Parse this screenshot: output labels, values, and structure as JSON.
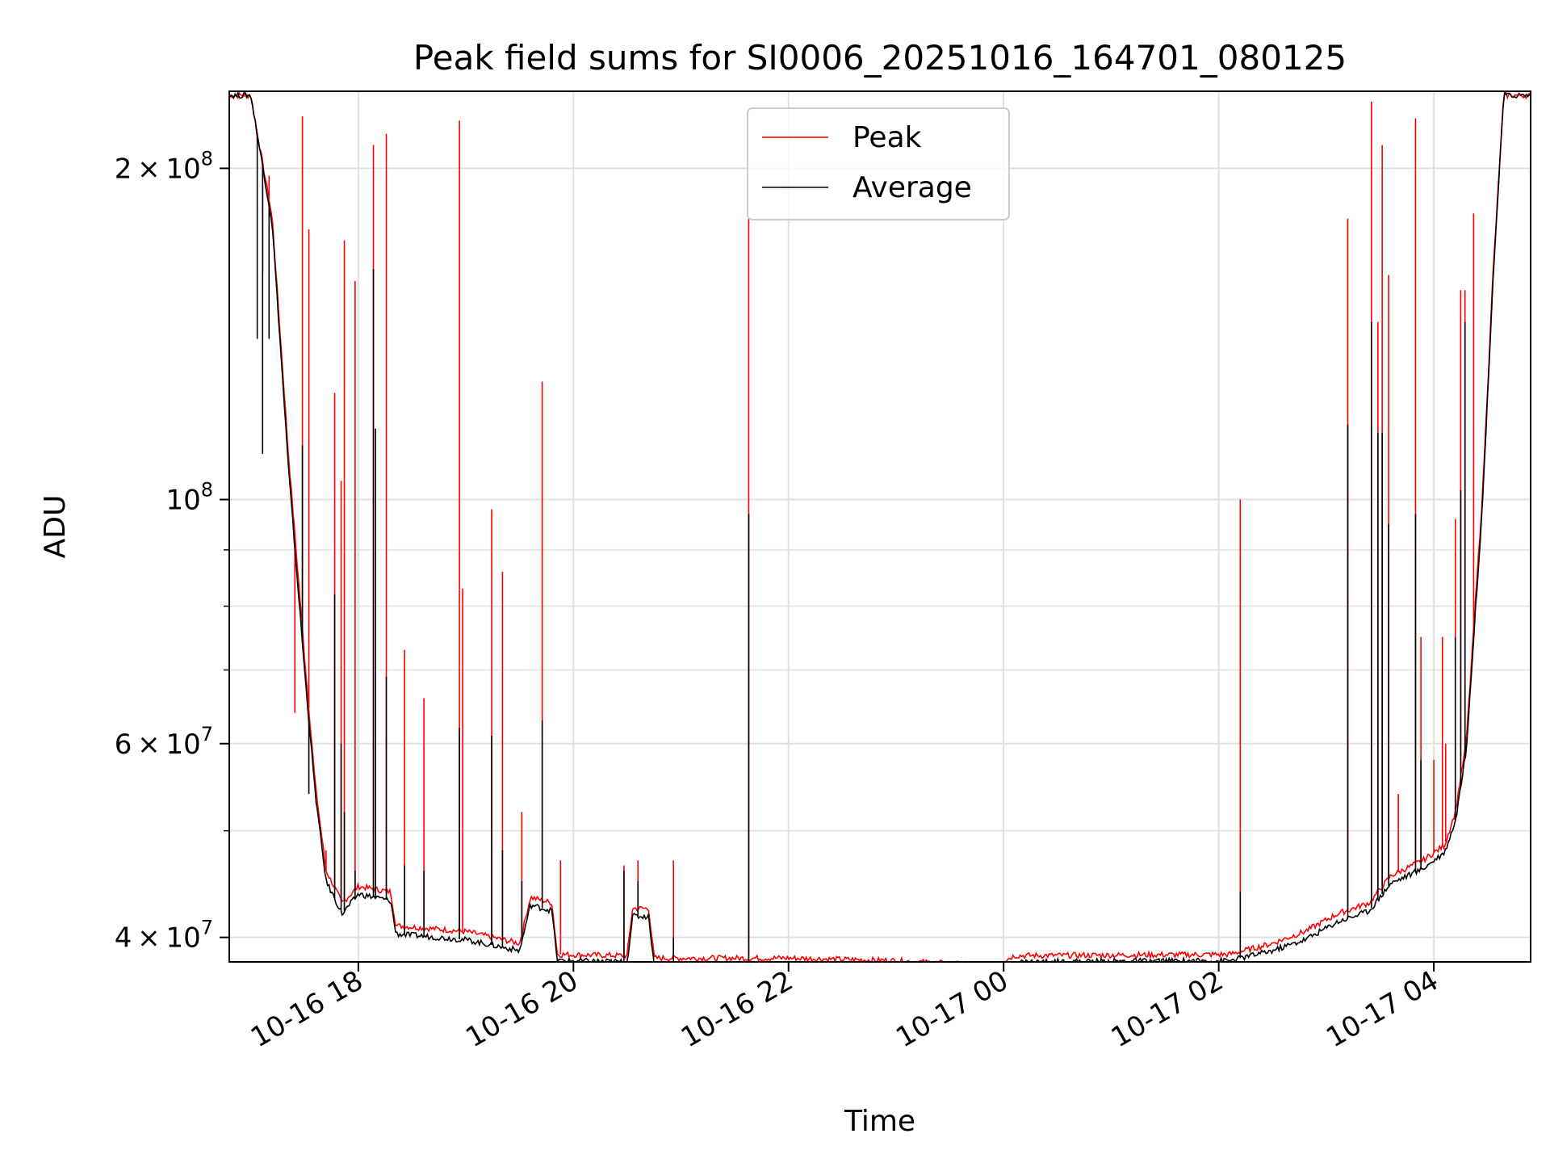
{
  "chart_data": {
    "type": "line",
    "title": "Peak field sums for SI0006_20251016_164701_080125",
    "xlabel": "Time",
    "ylabel": "ADU",
    "yscale": "log",
    "ylim": [
      38000000,
      235000000
    ],
    "xlim_hours": [
      16.8,
      28.9
    ],
    "grid": true,
    "legend_position": "top-center",
    "x_ticks": [
      {
        "hour": 18,
        "label": "10-16 18"
      },
      {
        "hour": 20,
        "label": "10-16 20"
      },
      {
        "hour": 22,
        "label": "10-16 22"
      },
      {
        "hour": 24,
        "label": "10-17 00"
      },
      {
        "hour": 26,
        "label": "10-17 02"
      },
      {
        "hour": 28,
        "label": "10-17 04"
      }
    ],
    "y_ticks_major": [
      {
        "value": 40000000,
        "label_mant": "4",
        "label_exp": "7"
      },
      {
        "value": 60000000,
        "label_mant": "6",
        "label_exp": "7"
      },
      {
        "value": 100000000,
        "label_mant": "",
        "label_exp": "8"
      },
      {
        "value": 200000000,
        "label_mant": "2",
        "label_exp": "8"
      }
    ],
    "y_ticks_minor": [
      50000000,
      70000000,
      80000000,
      90000000
    ],
    "series": [
      {
        "name": "Peak",
        "color": "#ff0000",
        "baseline": [
          [
            16.8,
            233000000
          ],
          [
            17.0,
            233000000
          ],
          [
            17.2,
            180000000
          ],
          [
            17.35,
            110000000
          ],
          [
            17.5,
            72000000
          ],
          [
            17.6,
            55000000
          ],
          [
            17.7,
            46000000
          ],
          [
            17.85,
            43000000
          ],
          [
            18.0,
            44500000
          ],
          [
            18.3,
            44000000
          ],
          [
            18.35,
            41000000
          ],
          [
            19.0,
            40500000
          ],
          [
            19.5,
            39500000
          ],
          [
            19.6,
            43500000
          ],
          [
            19.8,
            43000000
          ],
          [
            19.85,
            38600000
          ],
          [
            20.5,
            38500000
          ],
          [
            20.55,
            42500000
          ],
          [
            20.7,
            42500000
          ],
          [
            20.75,
            38300000
          ],
          [
            22.0,
            38300000
          ],
          [
            23.0,
            38100000
          ],
          [
            23.9,
            37700000
          ],
          [
            24.1,
            38500000
          ],
          [
            26.1,
            38600000
          ],
          [
            26.5,
            39500000
          ],
          [
            26.8,
            40500000
          ],
          [
            27.1,
            42000000
          ],
          [
            27.4,
            43000000
          ],
          [
            27.6,
            45500000
          ],
          [
            27.9,
            47000000
          ],
          [
            28.1,
            48500000
          ],
          [
            28.2,
            52000000
          ],
          [
            28.3,
            60000000
          ],
          [
            28.45,
            100000000
          ],
          [
            28.55,
            160000000
          ],
          [
            28.65,
            233000000
          ],
          [
            28.9,
            233000000
          ]
        ],
        "spikes": [
          [
            17.06,
            212000000
          ],
          [
            17.11,
            160000000
          ],
          [
            17.17,
            197000000
          ],
          [
            17.41,
            64000000
          ],
          [
            17.48,
            223000000
          ],
          [
            17.54,
            176000000
          ],
          [
            17.7,
            48000000
          ],
          [
            17.78,
            125000000
          ],
          [
            17.84,
            104000000
          ],
          [
            17.87,
            172000000
          ],
          [
            17.97,
            158000000
          ],
          [
            18.14,
            210000000
          ],
          [
            18.26,
            215000000
          ],
          [
            18.43,
            73000000
          ],
          [
            18.61,
            66000000
          ],
          [
            18.94,
            221000000
          ],
          [
            18.97,
            83000000
          ],
          [
            19.24,
            98000000
          ],
          [
            19.34,
            86000000
          ],
          [
            19.52,
            52000000
          ],
          [
            19.71,
            128000000
          ],
          [
            19.88,
            47000000
          ],
          [
            20.47,
            46500000
          ],
          [
            20.6,
            47000000
          ],
          [
            20.93,
            47000000
          ],
          [
            21.63,
            180000000
          ],
          [
            26.2,
            100000000
          ],
          [
            27.2,
            180000000
          ],
          [
            27.42,
            230000000
          ],
          [
            27.48,
            145000000
          ],
          [
            27.52,
            210000000
          ],
          [
            27.58,
            160000000
          ],
          [
            27.67,
            54000000
          ],
          [
            27.83,
            222000000
          ],
          [
            27.88,
            75000000
          ],
          [
            28.0,
            58000000
          ],
          [
            28.08,
            75000000
          ],
          [
            28.11,
            60000000
          ],
          [
            28.2,
            96000000
          ],
          [
            28.25,
            155000000
          ],
          [
            28.29,
            155000000
          ],
          [
            28.37,
            182000000
          ]
        ]
      },
      {
        "name": "Average",
        "color": "#000000",
        "baseline": [
          [
            16.8,
            233000000
          ],
          [
            17.0,
            233000000
          ],
          [
            17.2,
            178000000
          ],
          [
            17.35,
            107000000
          ],
          [
            17.5,
            70000000
          ],
          [
            17.6,
            54000000
          ],
          [
            17.7,
            45000000
          ],
          [
            17.85,
            42000000
          ],
          [
            18.0,
            43800000
          ],
          [
            18.3,
            43200000
          ],
          [
            18.35,
            40300000
          ],
          [
            19.0,
            39800000
          ],
          [
            19.5,
            38900000
          ],
          [
            19.6,
            42800000
          ],
          [
            19.8,
            42300000
          ],
          [
            19.85,
            38100000
          ],
          [
            20.5,
            38000000
          ],
          [
            20.55,
            41800000
          ],
          [
            20.7,
            41800000
          ],
          [
            20.75,
            37800000
          ],
          [
            22.0,
            37800000
          ],
          [
            23.0,
            37600000
          ],
          [
            23.9,
            37200000
          ],
          [
            24.1,
            38000000
          ],
          [
            26.1,
            38100000
          ],
          [
            26.5,
            38900000
          ],
          [
            26.8,
            39800000
          ],
          [
            27.1,
            41300000
          ],
          [
            27.4,
            42300000
          ],
          [
            27.6,
            44800000
          ],
          [
            27.9,
            46200000
          ],
          [
            28.1,
            47800000
          ],
          [
            28.2,
            51000000
          ],
          [
            28.3,
            59000000
          ],
          [
            28.45,
            98000000
          ],
          [
            28.55,
            158000000
          ],
          [
            28.65,
            233000000
          ],
          [
            28.9,
            233000000
          ]
        ],
        "spikes": [
          [
            17.06,
            140000000
          ],
          [
            17.11,
            110000000
          ],
          [
            17.17,
            140000000
          ],
          [
            17.48,
            112000000
          ],
          [
            17.54,
            54000000
          ],
          [
            17.78,
            82000000
          ],
          [
            17.84,
            60000000
          ],
          [
            17.87,
            52000000
          ],
          [
            17.97,
            46000000
          ],
          [
            18.14,
            162000000
          ],
          [
            18.16,
            116000000
          ],
          [
            18.26,
            69000000
          ],
          [
            18.43,
            46500000
          ],
          [
            18.61,
            46000000
          ],
          [
            18.94,
            62000000
          ],
          [
            19.24,
            61000000
          ],
          [
            19.34,
            48000000
          ],
          [
            19.52,
            45000000
          ],
          [
            19.71,
            63000000
          ],
          [
            20.47,
            46000000
          ],
          [
            20.6,
            45000000
          ],
          [
            20.93,
            40000000
          ],
          [
            21.63,
            97000000
          ],
          [
            26.2,
            44000000
          ],
          [
            27.2,
            117000000
          ],
          [
            27.42,
            145000000
          ],
          [
            27.48,
            115000000
          ],
          [
            27.52,
            115000000
          ],
          [
            27.58,
            95000000
          ],
          [
            27.83,
            97000000
          ],
          [
            27.88,
            58000000
          ],
          [
            28.2,
            75000000
          ],
          [
            28.25,
            102000000
          ],
          [
            28.29,
            145000000
          ]
        ]
      }
    ]
  }
}
